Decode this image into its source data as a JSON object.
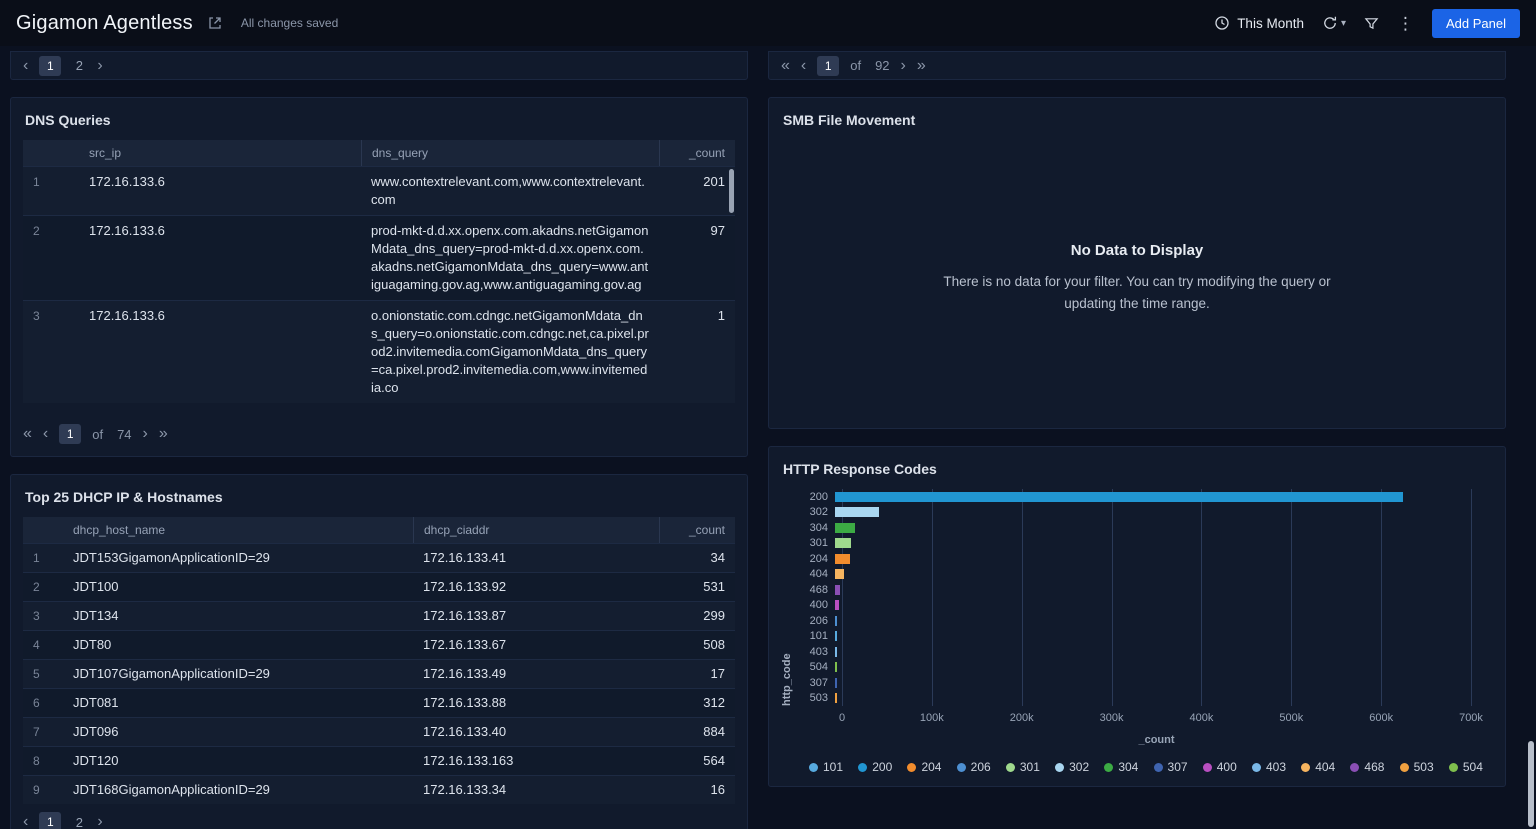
{
  "icons": {
    "chevron_left": "‹",
    "chevron_right": "›",
    "double_chevron_left": "«",
    "double_chevron_right": "»",
    "chevron_down": "▾",
    "kebab": "⋮"
  },
  "topbar": {
    "title": "Gigamon Agentless",
    "save_status": "All changes saved",
    "time_range_label": "This Month",
    "add_panel_label": "Add Panel"
  },
  "left_top_panel": {
    "pagination": {
      "active_page": "1",
      "pages": [
        "1",
        "2"
      ]
    }
  },
  "right_top_panel": {
    "pagination": {
      "current_page": "1",
      "of_label": "of",
      "total_pages": "92"
    }
  },
  "dns_panel": {
    "title": "DNS Queries",
    "table": {
      "columns": [
        "src_ip",
        "dns_query",
        "_count"
      ],
      "rows": [
        {
          "n": "1",
          "cells": [
            "172.16.133.6",
            "www.contextrelevant.com,www.contextrelevant.com",
            "201"
          ]
        },
        {
          "n": "2",
          "cells": [
            "172.16.133.6",
            "prod-mkt-d.d.xx.openx.com.akadns.netGigamonMdata_dns_query=prod-mkt-d.d.xx.openx.com.akadns.netGigamonMdata_dns_query=www.antiguagaming.gov.ag,www.antiguagaming.gov.ag",
            "97"
          ]
        },
        {
          "n": "3",
          "cells": [
            "172.16.133.6",
            "o.onionstatic.com.cdngc.netGigamonMdata_dns_query=o.onionstatic.com.cdngc.net,ca.pixel.prod2.invitemedia.comGigamonMdata_dns_query=ca.pixel.prod2.invitemedia.com,www.invitemedia.co",
            "1"
          ]
        }
      ]
    },
    "pagination": {
      "current_page": "1",
      "of_label": "of",
      "total_pages": "74"
    }
  },
  "dhcp_panel": {
    "title": "Top 25 DHCP IP & Hostnames",
    "table": {
      "columns": [
        "dhcp_host_name",
        "dhcp_ciaddr",
        "_count"
      ],
      "rows": [
        {
          "n": "1",
          "cells": [
            "JDT153GigamonApplicationID=29",
            "172.16.133.41",
            "34"
          ]
        },
        {
          "n": "2",
          "cells": [
            "JDT100",
            "172.16.133.92",
            "531"
          ]
        },
        {
          "n": "3",
          "cells": [
            "JDT134",
            "172.16.133.87",
            "299"
          ]
        },
        {
          "n": "4",
          "cells": [
            "JDT80",
            "172.16.133.67",
            "508"
          ]
        },
        {
          "n": "5",
          "cells": [
            "JDT107GigamonApplicationID=29",
            "172.16.133.49",
            "17"
          ]
        },
        {
          "n": "6",
          "cells": [
            "JDT081",
            "172.16.133.88",
            "312"
          ]
        },
        {
          "n": "7",
          "cells": [
            "JDT096",
            "172.16.133.40",
            "884"
          ]
        },
        {
          "n": "8",
          "cells": [
            "JDT120",
            "172.16.133.163",
            "564"
          ]
        },
        {
          "n": "9",
          "cells": [
            "JDT168GigamonApplicationID=29",
            "172.16.133.34",
            "16"
          ]
        }
      ]
    },
    "pagination": {
      "active_page": "1",
      "pages": [
        "1",
        "2"
      ]
    }
  },
  "smb_panel": {
    "title": "SMB File Movement",
    "no_data_title": "No Data to Display",
    "no_data_message": "There is no data for your filter. You can try modifying the query or updating the time range."
  },
  "http_panel": {
    "title": "HTTP Response Codes"
  },
  "chart_data": {
    "type": "bar",
    "orientation": "horizontal",
    "title": "HTTP Response Codes",
    "ylabel": "http_code",
    "xlabel": "_count",
    "xlim": [
      0,
      700000
    ],
    "xticks": [
      "0",
      "100k",
      "200k",
      "300k",
      "400k",
      "500k",
      "600k",
      "700k"
    ],
    "grid": true,
    "legend_position": "bottom",
    "categories": [
      "200",
      "302",
      "304",
      "301",
      "204",
      "404",
      "468",
      "400",
      "206",
      "101",
      "403",
      "504",
      "307",
      "503"
    ],
    "values": [
      625000,
      48000,
      22000,
      18000,
      16000,
      10000,
      6000,
      4000,
      2500,
      1500,
      1000,
      800,
      600,
      400
    ],
    "colors": {
      "200": "#2196d2",
      "302": "#a9d6f0",
      "304": "#3cab44",
      "301": "#9fd98d",
      "204": "#f28c2d",
      "404": "#f6b45f",
      "468": "#8a4fb5",
      "400": "#b94fc1",
      "206": "#4d8fd1",
      "101": "#57aadf",
      "403": "#7ab8e8",
      "504": "#7fbf4d",
      "307": "#3f64b0",
      "503": "#f0a040"
    },
    "legend": [
      "101",
      "200",
      "204",
      "206",
      "301",
      "302",
      "304",
      "307",
      "400",
      "403",
      "404",
      "468",
      "503",
      "504"
    ]
  },
  "colors": {
    "accent_blue": "#1b64e6",
    "primary_bar": "#2196d2"
  }
}
